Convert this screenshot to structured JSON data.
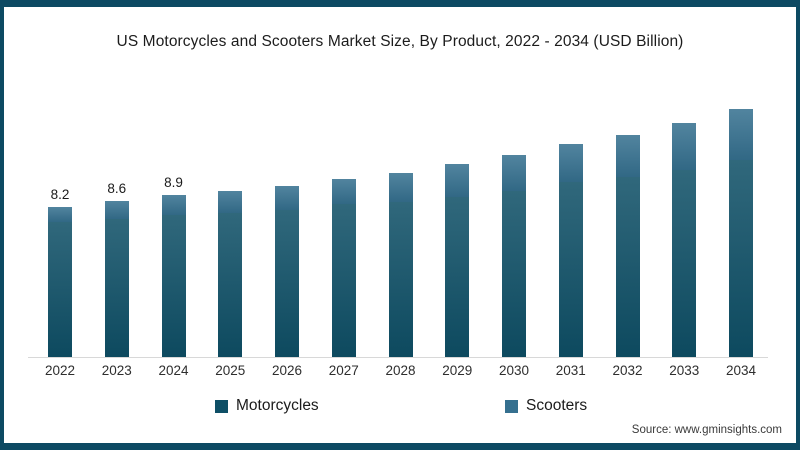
{
  "title": "US Motorcycles and Scooters Market Size, By Product, 2022 - 2034 (USD Billion)",
  "source": "Source: www.gminsights.com",
  "colors": {
    "frame_border": "#0D4A63",
    "axis_line": "#D8D8D8",
    "motorcycles": "#0E4F66",
    "scooters": "#35708F"
  },
  "legend": [
    {
      "label": "Motorcycles",
      "color": "#0E4F66"
    },
    {
      "label": "Scooters",
      "color": "#35708F"
    }
  ],
  "chart_data": {
    "type": "bar",
    "stacked": true,
    "title": "US Motorcycles and Scooters Market Size, By Product, 2022 - 2034 (USD Billion)",
    "xlabel": "",
    "ylabel": "USD Billion",
    "ylim": [
      0,
      14
    ],
    "grid": false,
    "legend_position": "bottom",
    "categories": [
      "2022",
      "2023",
      "2024",
      "2025",
      "2026",
      "2027",
      "2028",
      "2029",
      "2030",
      "2031",
      "2032",
      "2033",
      "2034"
    ],
    "series": [
      {
        "name": "Motorcycles",
        "color": "#0E4F66",
        "values": [
          7.4,
          7.6,
          7.8,
          7.9,
          8.1,
          8.4,
          8.5,
          8.8,
          9.1,
          9.6,
          9.9,
          10.3,
          10.8
        ]
      },
      {
        "name": "Scooters",
        "color": "#35708F",
        "values": [
          0.8,
          1.0,
          1.1,
          1.2,
          1.3,
          1.4,
          1.6,
          1.8,
          2.0,
          2.1,
          2.3,
          2.6,
          2.8
        ]
      }
    ],
    "totals": [
      8.2,
      8.6,
      8.9,
      9.1,
      9.4,
      9.8,
      10.1,
      10.6,
      11.1,
      11.7,
      12.2,
      12.9,
      13.6
    ],
    "data_labels": [
      "8.2",
      "8.6",
      "8.9",
      "",
      "",
      "",
      "",
      "",
      "",
      "",
      "",
      "",
      ""
    ]
  }
}
